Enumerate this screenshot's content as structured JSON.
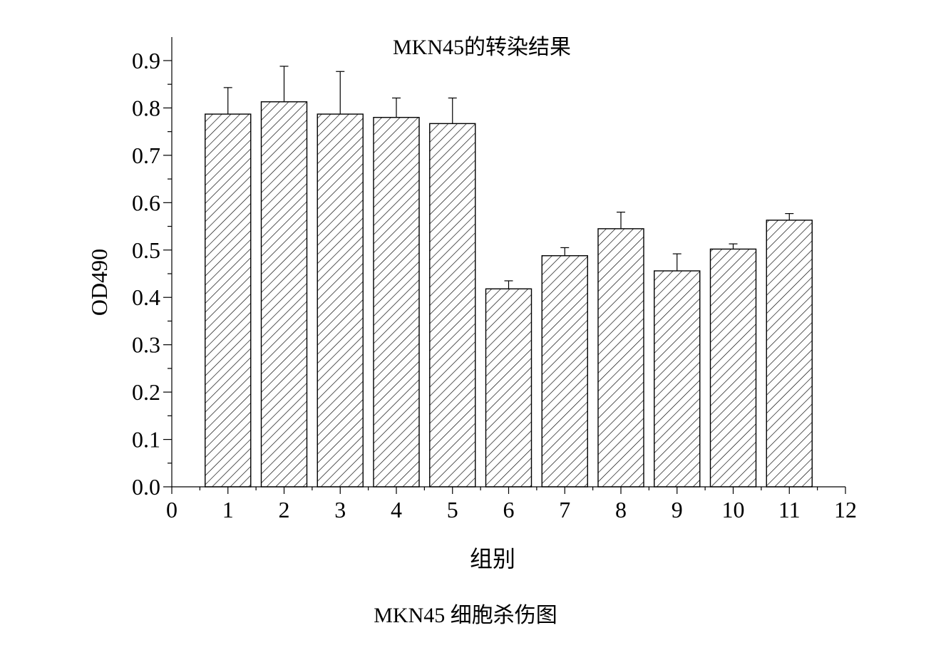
{
  "chart_data": {
    "type": "bar",
    "title": "MKN45的转染结果",
    "xlabel": "组别",
    "ylabel": "OD490",
    "x": [
      1,
      2,
      3,
      4,
      5,
      6,
      7,
      8,
      9,
      10,
      11
    ],
    "values": [
      0.787,
      0.813,
      0.787,
      0.78,
      0.767,
      0.418,
      0.488,
      0.545,
      0.456,
      0.502,
      0.563
    ],
    "errors": [
      0.056,
      0.075,
      0.09,
      0.041,
      0.054,
      0.017,
      0.017,
      0.035,
      0.036,
      0.011,
      0.014
    ],
    "xlim": [
      0,
      12
    ],
    "ylim": [
      0,
      0.95
    ],
    "xticks": [
      "0",
      "1",
      "2",
      "3",
      "4",
      "5",
      "6",
      "7",
      "8",
      "9",
      "10",
      "11",
      "12"
    ],
    "yticks": [
      "0.0",
      "0.1",
      "0.2",
      "0.3",
      "0.4",
      "0.5",
      "0.6",
      "0.7",
      "0.8",
      "0.9"
    ],
    "bar_fill": "hatched",
    "grid": false,
    "colors": {
      "ink": "#000000",
      "background": "#ffffff"
    }
  },
  "caption": "MKN45 细胞杀伤图"
}
